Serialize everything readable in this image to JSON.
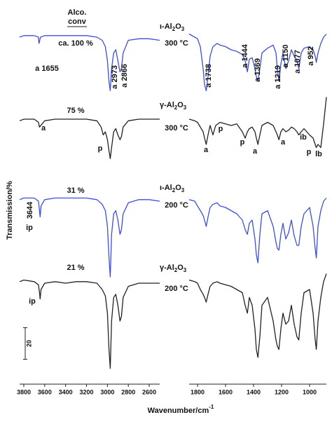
{
  "chart_data": [
    {
      "type": "line",
      "xlim": [
        3840,
        2500
      ],
      "xticks": [
        3800,
        3600,
        3400,
        3200,
        3000,
        2800,
        2600
      ],
      "ylim": [
        0,
        240
      ],
      "series": [
        {
          "color": "#3d4fd6",
          "x": [
            3840,
            3800,
            3700,
            3660,
            3655,
            3640,
            3600,
            3500,
            3400,
            3300,
            3200,
            3100,
            3050,
            3020,
            3000,
            2985,
            2973,
            2960,
            2940,
            2920,
            2900,
            2880,
            2866,
            2850,
            2800,
            2700,
            2600,
            2500
          ],
          "values": [
            220,
            221,
            221,
            220,
            216,
            220,
            221,
            221,
            221,
            221,
            221,
            220,
            218,
            214,
            205,
            192,
            186,
            200,
            210,
            212,
            205,
            198,
            200,
            210,
            218,
            219,
            219,
            218
          ]
        },
        {
          "color": "#222222",
          "x": [
            3840,
            3800,
            3700,
            3660,
            3650,
            3600,
            3500,
            3400,
            3300,
            3200,
            3100,
            3060,
            3040,
            3020,
            3000,
            2985,
            2973,
            2960,
            2940,
            2920,
            2900,
            2880,
            2866,
            2850,
            2800,
            2700,
            2600,
            2500
          ],
          "values": [
            167,
            168,
            168,
            166,
            163,
            167,
            168,
            168,
            168,
            168,
            167,
            163,
            158,
            160,
            155,
            148,
            143,
            150,
            160,
            162,
            158,
            155,
            157,
            163,
            167,
            168,
            168,
            168
          ]
        },
        {
          "color": "#3d4fd6",
          "x": [
            3840,
            3800,
            3700,
            3660,
            3650,
            3644,
            3635,
            3600,
            3500,
            3400,
            3300,
            3200,
            3100,
            3050,
            3020,
            3000,
            2985,
            2973,
            2960,
            2940,
            2920,
            2900,
            2880,
            2866,
            2850,
            2800,
            2700,
            2600,
            2500
          ],
          "values": [
            117,
            118,
            118,
            116,
            110,
            106,
            113,
            117,
            118,
            118,
            118,
            118,
            117,
            114,
            110,
            100,
            80,
            68,
            95,
            108,
            110,
            104,
            95,
            98,
            108,
            115,
            117,
            117,
            116
          ]
        },
        {
          "color": "#222222",
          "x": [
            3840,
            3800,
            3700,
            3660,
            3650,
            3644,
            3635,
            3600,
            3500,
            3400,
            3300,
            3200,
            3100,
            3050,
            3020,
            3000,
            2985,
            2973,
            2960,
            2940,
            2920,
            2900,
            2880,
            2866,
            2850,
            2800,
            2700,
            2600,
            2500
          ],
          "values": [
            65,
            66,
            65,
            63,
            58,
            54,
            60,
            64,
            65,
            64,
            65,
            65,
            64,
            60,
            56,
            45,
            22,
            10,
            40,
            55,
            57,
            50,
            40,
            43,
            55,
            62,
            64,
            64,
            64
          ]
        }
      ]
    },
    {
      "type": "line",
      "xlim": [
        1860,
        880
      ],
      "xticks": [
        1800,
        1600,
        1400,
        1200,
        1000
      ],
      "ylim": [
        0,
        240
      ],
      "series": [
        {
          "color": "#3d4fd6",
          "x": [
            1860,
            1820,
            1800,
            1780,
            1760,
            1750,
            1738,
            1725,
            1710,
            1690,
            1660,
            1640,
            1600,
            1560,
            1520,
            1480,
            1460,
            1444,
            1430,
            1410,
            1390,
            1380,
            1369,
            1355,
            1340,
            1300,
            1260,
            1240,
            1230,
            1219,
            1205,
            1190,
            1170,
            1150,
            1130,
            1110,
            1090,
            1077,
            1060,
            1040,
            1000,
            975,
            960,
            952,
            940,
            920,
            900,
            880
          ],
          "values": [
            222,
            220,
            219,
            214,
            200,
            190,
            186,
            195,
            208,
            214,
            216,
            215,
            214,
            212,
            211,
            209,
            205,
            198,
            206,
            207,
            200,
            195,
            192,
            200,
            210,
            213,
            215,
            210,
            200,
            192,
            203,
            210,
            200,
            205,
            212,
            208,
            205,
            200,
            210,
            213,
            214,
            212,
            208,
            204,
            210,
            216,
            220,
            222
          ]
        },
        {
          "color": "#222222",
          "x": [
            1860,
            1820,
            1800,
            1780,
            1760,
            1750,
            1738,
            1725,
            1710,
            1690,
            1670,
            1640,
            1600,
            1560,
            1520,
            1480,
            1460,
            1444,
            1430,
            1410,
            1390,
            1380,
            1369,
            1355,
            1340,
            1300,
            1260,
            1240,
            1230,
            1219,
            1205,
            1190,
            1170,
            1150,
            1130,
            1110,
            1090,
            1077,
            1060,
            1040,
            1000,
            975,
            960,
            952,
            940,
            920,
            900,
            880
          ],
          "values": [
            168,
            167,
            166,
            163,
            160,
            156,
            152,
            158,
            164,
            158,
            164,
            166,
            165,
            164,
            165,
            160,
            156,
            160,
            162,
            163,
            160,
            156,
            152,
            158,
            164,
            166,
            164,
            160,
            158,
            155,
            160,
            162,
            160,
            161,
            163,
            162,
            160,
            158,
            160,
            162,
            158,
            156,
            152,
            150,
            152,
            150,
            165,
            182
          ]
        },
        {
          "color": "#3d4fd6",
          "x": [
            1860,
            1820,
            1800,
            1780,
            1760,
            1750,
            1738,
            1725,
            1710,
            1690,
            1660,
            1640,
            1600,
            1560,
            1520,
            1480,
            1460,
            1444,
            1430,
            1410,
            1390,
            1380,
            1369,
            1355,
            1340,
            1300,
            1260,
            1240,
            1230,
            1219,
            1205,
            1190,
            1170,
            1150,
            1130,
            1110,
            1090,
            1077,
            1060,
            1040,
            1000,
            975,
            960,
            952,
            940,
            920,
            900,
            880
          ],
          "values": [
            117,
            116,
            113,
            110,
            107,
            104,
            100,
            106,
            112,
            114,
            115,
            113,
            112,
            110,
            108,
            104,
            98,
            95,
            102,
            104,
            92,
            82,
            77,
            95,
            108,
            110,
            100,
            90,
            86,
            85,
            95,
            102,
            92,
            96,
            104,
            94,
            88,
            88,
            100,
            108,
            112,
            100,
            86,
            80,
            100,
            110,
            116,
            118
          ]
        },
        {
          "color": "#222222",
          "x": [
            1860,
            1820,
            1800,
            1780,
            1760,
            1750,
            1738,
            1725,
            1710,
            1690,
            1660,
            1640,
            1600,
            1560,
            1520,
            1480,
            1460,
            1444,
            1430,
            1410,
            1390,
            1380,
            1369,
            1355,
            1340,
            1300,
            1260,
            1240,
            1230,
            1219,
            1205,
            1190,
            1170,
            1150,
            1130,
            1110,
            1090,
            1077,
            1060,
            1040,
            1000,
            975,
            960,
            952,
            940,
            920,
            900,
            880
          ],
          "values": [
            66,
            65,
            64,
            60,
            57,
            55,
            52,
            57,
            62,
            64,
            65,
            64,
            63,
            62,
            60,
            58,
            50,
            45,
            55,
            50,
            35,
            22,
            17,
            30,
            50,
            55,
            40,
            28,
            24,
            22,
            35,
            45,
            38,
            40,
            50,
            38,
            30,
            28,
            45,
            58,
            60,
            45,
            28,
            22,
            40,
            55,
            65,
            70
          ]
        }
      ]
    }
  ],
  "header": [
    "Alco.",
    "conv"
  ],
  "samples": [
    {
      "conversion": "ca. 100 %",
      "catalyst": [
        "ι-Al",
        "2",
        "O",
        "3"
      ],
      "temperature": "300 °C"
    },
    {
      "conversion": "75 %",
      "catalyst": [
        "γ-Al",
        "2",
        "O",
        "3"
      ],
      "temperature": "300 °C"
    },
    {
      "conversion": "31 %",
      "catalyst": [
        "ι-Al",
        "2",
        "O",
        "3"
      ],
      "temperature": "200 °C"
    },
    {
      "conversion": "21 %",
      "catalyst": [
        "γ-Al",
        "2",
        "O",
        "3"
      ],
      "temperature": "200 °C"
    }
  ],
  "peak_labels": [
    "a 1655",
    "a 2973",
    "a 2866",
    "a 1738",
    "a 1444",
    "a 1369",
    "a 1219",
    "a 1150",
    "a 1077",
    "a 952",
    "a",
    "p",
    "a",
    "p",
    "p",
    "a",
    "a",
    "ib",
    "p",
    "lb",
    "3644",
    "ip",
    "ip"
  ],
  "scale_bar": 20,
  "y_label": "Transmission/%",
  "x_label": [
    "Wavenumber/cm",
    "-1"
  ]
}
